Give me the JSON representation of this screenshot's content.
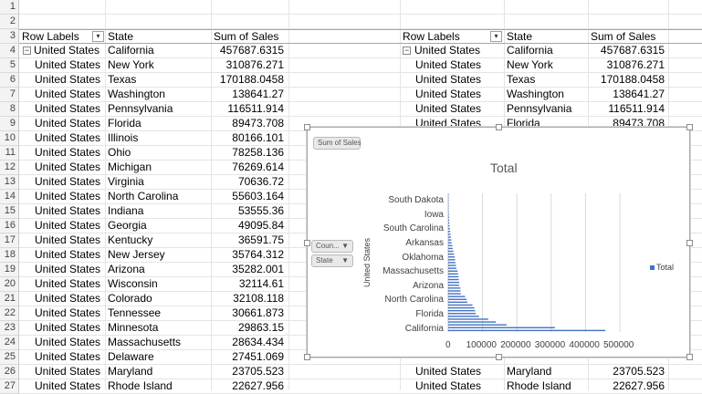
{
  "row_numbers": [
    "1",
    "2",
    "3",
    "4",
    "5",
    "6",
    "7",
    "8",
    "9",
    "10",
    "11",
    "12",
    "13",
    "14",
    "15",
    "16",
    "17",
    "18",
    "19",
    "20",
    "21",
    "22",
    "23",
    "24",
    "25",
    "26",
    "27"
  ],
  "pivot_left": {
    "headers": {
      "row_labels": "Row Labels",
      "state": "State",
      "sum": "Sum of Sales"
    },
    "rows": [
      {
        "country": "United States",
        "state": "California",
        "sales": "457687.6315"
      },
      {
        "country": "United States",
        "state": "New York",
        "sales": "310876.271"
      },
      {
        "country": "United States",
        "state": "Texas",
        "sales": "170188.0458"
      },
      {
        "country": "United States",
        "state": "Washington",
        "sales": "138641.27"
      },
      {
        "country": "United States",
        "state": "Pennsylvania",
        "sales": "116511.914"
      },
      {
        "country": "United States",
        "state": "Florida",
        "sales": "89473.708"
      },
      {
        "country": "United States",
        "state": "Illinois",
        "sales": "80166.101"
      },
      {
        "country": "United States",
        "state": "Ohio",
        "sales": "78258.136"
      },
      {
        "country": "United States",
        "state": "Michigan",
        "sales": "76269.614"
      },
      {
        "country": "United States",
        "state": "Virginia",
        "sales": "70636.72"
      },
      {
        "country": "United States",
        "state": "North Carolina",
        "sales": "55603.164"
      },
      {
        "country": "United States",
        "state": "Indiana",
        "sales": "53555.36"
      },
      {
        "country": "United States",
        "state": "Georgia",
        "sales": "49095.84"
      },
      {
        "country": "United States",
        "state": "Kentucky",
        "sales": "36591.75"
      },
      {
        "country": "United States",
        "state": "New Jersey",
        "sales": "35764.312"
      },
      {
        "country": "United States",
        "state": "Arizona",
        "sales": "35282.001"
      },
      {
        "country": "United States",
        "state": "Wisconsin",
        "sales": "32114.61"
      },
      {
        "country": "United States",
        "state": "Colorado",
        "sales": "32108.118"
      },
      {
        "country": "United States",
        "state": "Tennessee",
        "sales": "30661.873"
      },
      {
        "country": "United States",
        "state": "Minnesota",
        "sales": "29863.15"
      },
      {
        "country": "United States",
        "state": "Massachusetts",
        "sales": "28634.434"
      },
      {
        "country": "United States",
        "state": "Delaware",
        "sales": "27451.069"
      },
      {
        "country": "United States",
        "state": "Maryland",
        "sales": "23705.523"
      },
      {
        "country": "United States",
        "state": "Rhode Island",
        "sales": "22627.956"
      }
    ]
  },
  "pivot_right": {
    "headers": {
      "row_labels": "Row Labels",
      "state": "State",
      "sum": "Sum of Sales"
    },
    "rows_top": [
      {
        "country": "United States",
        "state": "California",
        "sales": "457687.6315"
      },
      {
        "country": "United States",
        "state": "New York",
        "sales": "310876.271"
      },
      {
        "country": "United States",
        "state": "Texas",
        "sales": "170188.0458"
      },
      {
        "country": "United States",
        "state": "Washington",
        "sales": "138641.27"
      },
      {
        "country": "United States",
        "state": "Pennsylvania",
        "sales": "116511.914"
      },
      {
        "country": "United States",
        "state": "Florida",
        "sales": "89473.708"
      }
    ],
    "rows_bottom": [
      {
        "country": "United States",
        "state": "Maryland",
        "sales": "23705.523"
      },
      {
        "country": "United States",
        "state": "Rhode Island",
        "sales": "22627.956"
      }
    ]
  },
  "chart": {
    "field_buttons": {
      "sum": "Sum of Sales",
      "country": "Coun...",
      "state": "State"
    },
    "axis_title": "United States",
    "legend": "Total",
    "colors": {
      "bar": "#4472c4",
      "grid": "#d9d9d9"
    }
  },
  "chart_data": {
    "type": "bar",
    "orientation": "horizontal",
    "title": "Total",
    "ylabel": "United States",
    "y_tick_labels": [
      "South Dakota",
      "Iowa",
      "South Carolina",
      "Arkansas",
      "Oklahoma",
      "Massachusetts",
      "Arizona",
      "North Carolina",
      "Florida",
      "California"
    ],
    "xlim": [
      0,
      500000
    ],
    "x_ticks": [
      "0",
      "100000",
      "200000",
      "300000",
      "400000",
      "500000"
    ],
    "legend": [
      "Total"
    ],
    "series": [
      {
        "name": "Total",
        "values": [
          457687.6315,
          310876.271,
          170188.0458,
          138641.27,
          116511.914,
          89473.708,
          80166.101,
          78258.136,
          76269.614,
          70636.72,
          55603.164,
          53555.36,
          49095.84,
          36591.75,
          35764.312,
          35282.001,
          32114.61,
          32108.118,
          30661.873,
          29863.15,
          28634.434,
          27451.069,
          23705.523,
          22627.956,
          21000,
          20000,
          19000,
          17000,
          15000,
          13000,
          12000,
          10000,
          9000,
          8000,
          7000,
          6000,
          5000,
          4000,
          3500,
          3000,
          2500,
          2000,
          1500,
          1000,
          800,
          600,
          400,
          300,
          200
        ]
      }
    ]
  }
}
